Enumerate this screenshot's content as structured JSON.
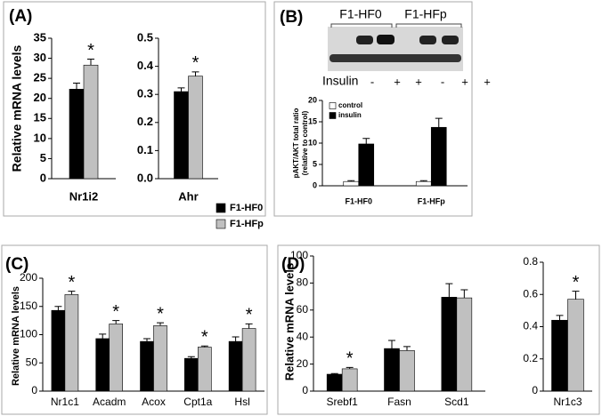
{
  "chart_data": [
    {
      "type": "bar",
      "label": "(A)",
      "y_label": "Relative mRNA levels",
      "categories": [
        "Nr1i2"
      ],
      "series": [
        {
          "color": "#000000",
          "values": [
            22.3
          ],
          "errors": [
            1.5
          ]
        },
        {
          "color": "#c0c0c0",
          "values": [
            28.3
          ],
          "errors": [
            1.5
          ],
          "annotations": [
            "*"
          ]
        }
      ],
      "ylim": [
        0,
        35
      ],
      "yticks": [
        0,
        5,
        10,
        15,
        20,
        25,
        30,
        35
      ]
    },
    {
      "type": "bar",
      "categories": [
        "Ahr"
      ],
      "series": [
        {
          "color": "#000000",
          "values": [
            0.31
          ],
          "errors": [
            0.013
          ]
        },
        {
          "color": "#c0c0c0",
          "values": [
            0.365
          ],
          "errors": [
            0.015
          ],
          "annotations": [
            "*"
          ]
        }
      ],
      "ylim": [
        0,
        0.5
      ],
      "yticks": [
        {
          "value": 0,
          "label": "0.0"
        },
        0.1,
        0.2,
        0.3,
        0.4,
        0.5
      ]
    },
    {
      "type": "bar",
      "label": "(B)",
      "blot": {
        "groups": [
          "F1-HF0",
          "F1-HFp"
        ],
        "row_label": "Insulin",
        "treatments": [
          "-",
          "+",
          "+",
          "-",
          "+",
          "+"
        ]
      },
      "y_label": [
        "pAKT/AKT total ratio",
        "(relative to control)"
      ],
      "categories": [
        "F1-HF0",
        "F1-HFp"
      ],
      "series": [
        {
          "name": "control",
          "color": "#ffffff",
          "values": [
            1,
            1
          ],
          "errors": [
            0.2,
            0.2
          ]
        },
        {
          "name": "insulin",
          "color": "#000000",
          "values": [
            9.8,
            13.7
          ],
          "errors": [
            1.3,
            2.1
          ]
        }
      ],
      "ylim": [
        0,
        20
      ],
      "yticks": [
        0,
        5,
        10,
        15,
        20
      ],
      "legend": "upper left"
    },
    {
      "type": "bar",
      "label": "(C)",
      "y_label": "Relative mRNA levels",
      "categories": [
        "Nr1c1",
        "Acadm",
        "Acox",
        "Cpt1a",
        "Hsl"
      ],
      "series": [
        {
          "color": "#000000",
          "values": [
            143,
            93,
            88,
            58,
            88
          ],
          "errors": [
            7,
            8,
            5,
            3,
            8
          ]
        },
        {
          "color": "#c0c0c0",
          "values": [
            171,
            119,
            116,
            78,
            111
          ],
          "errors": [
            6,
            6,
            5,
            2,
            8
          ],
          "annotations": [
            "*",
            "*",
            "*",
            "*",
            "*"
          ]
        }
      ],
      "ylim": [
        0,
        200
      ],
      "yticks": [
        0,
        50,
        100,
        150,
        200
      ]
    },
    {
      "type": "bar",
      "label": "(D)",
      "y_label": "Relative mRNA levels",
      "categories": [
        "Srebf1",
        "Fasn",
        "Scd1"
      ],
      "series": [
        {
          "color": "#000000",
          "values": [
            12.5,
            31.5,
            69.5
          ],
          "errors": [
            0.5,
            6,
            10
          ]
        },
        {
          "color": "#c0c0c0",
          "values": [
            16.5,
            30,
            69
          ],
          "errors": [
            1,
            3,
            6
          ],
          "annotations": [
            "*",
            null,
            null
          ]
        }
      ],
      "ylim": [
        0,
        100
      ],
      "yticks": [
        0,
        20,
        40,
        60,
        80,
        100
      ]
    },
    {
      "type": "bar",
      "categories": [
        "Nr1c3"
      ],
      "series": [
        {
          "color": "#000000",
          "values": [
            0.44
          ],
          "errors": [
            0.03
          ]
        },
        {
          "color": "#c0c0c0",
          "values": [
            0.57
          ],
          "errors": [
            0.05
          ],
          "annotations": [
            "*"
          ]
        }
      ],
      "ylim": [
        0,
        0.8
      ],
      "yticks": [
        0,
        0.2,
        0.4,
        0.6,
        0.8
      ]
    }
  ],
  "legend": [
    {
      "name": "F1-HF0",
      "color": "#000000"
    },
    {
      "name": "F1-HFp",
      "color": "#c0c0c0"
    }
  ]
}
